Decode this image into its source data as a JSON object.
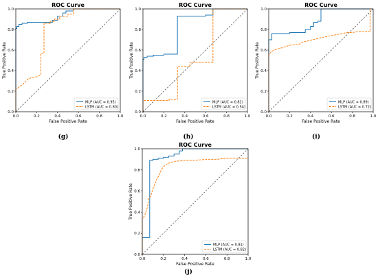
{
  "chart_data": [
    {
      "type": "line",
      "caption": "(g)",
      "title": "ROC Curve",
      "xlabel": "False Positive Rate",
      "ylabel": "True Positive Rate",
      "xlim": [
        0,
        1
      ],
      "ylim": [
        0,
        1
      ],
      "ticks": [
        "0.0",
        "0.2",
        "0.4",
        "0.6",
        "0.8",
        "1.0"
      ],
      "legend_position": "lower-right",
      "diagonal": true,
      "series": [
        {
          "name": "MLP (AUC = 0.95)",
          "color": "#1f77b4",
          "style": "solid",
          "x": [
            0,
            0,
            0.01,
            0.01,
            0.03,
            0.03,
            0.06,
            0.06,
            0.11,
            0.11,
            0.25,
            0.25,
            0.35,
            0.35,
            0.4,
            0.4,
            0.45,
            0.45,
            0.48,
            0.48,
            0.55,
            0.55,
            1.0
          ],
          "y": [
            0,
            0.81,
            0.81,
            0.83,
            0.83,
            0.85,
            0.85,
            0.86,
            0.86,
            0.87,
            0.87,
            0.87,
            0.87,
            0.89,
            0.89,
            0.93,
            0.93,
            0.96,
            0.96,
            0.98,
            0.98,
            1.0,
            1.0
          ]
        },
        {
          "name": "LSTM (AUC = 0.80)",
          "color": "#ff7f0e",
          "style": "dashed",
          "x": [
            0,
            0,
            0.02,
            0.04,
            0.06,
            0.08,
            0.1,
            0.12,
            0.15,
            0.2,
            0.24,
            0.24,
            0.27,
            0.27,
            0.33,
            0.33,
            0.37,
            0.37,
            0.42,
            0.42,
            0.5,
            0.5,
            0.55,
            0.55,
            1.0
          ],
          "y": [
            0,
            0.22,
            0.23,
            0.25,
            0.26,
            0.28,
            0.3,
            0.32,
            0.33,
            0.34,
            0.36,
            0.57,
            0.57,
            0.86,
            0.86,
            0.88,
            0.88,
            0.9,
            0.9,
            0.93,
            0.93,
            0.95,
            0.95,
            1.0,
            1.0
          ]
        }
      ]
    },
    {
      "type": "line",
      "caption": "(h)",
      "title": "ROC Curve",
      "xlabel": "False Positive Rate",
      "ylabel": "True Positive Rate",
      "xlim": [
        0,
        1
      ],
      "ylim": [
        0,
        1
      ],
      "ticks": [
        "0.0",
        "0.2",
        "0.4",
        "0.6",
        "0.8",
        "1.0"
      ],
      "legend_position": "lower-right",
      "diagonal": true,
      "series": [
        {
          "name": "MLP (AUC = 0.82)",
          "color": "#1f77b4",
          "style": "solid",
          "x": [
            0,
            0,
            0.01,
            0.01,
            0.04,
            0.04,
            0.1,
            0.1,
            0.2,
            0.2,
            0.33,
            0.33,
            0.5,
            0.5,
            0.6,
            0.6,
            0.67,
            0.67,
            1.0
          ],
          "y": [
            0,
            0.51,
            0.51,
            0.53,
            0.53,
            0.54,
            0.54,
            0.55,
            0.55,
            0.56,
            0.56,
            0.93,
            0.93,
            0.93,
            0.93,
            0.94,
            0.94,
            1.0,
            1.0
          ]
        },
        {
          "name": "LSTM (AUC = 0.54)",
          "color": "#ff7f0e",
          "style": "dashed",
          "x": [
            0,
            0,
            0.25,
            0.25,
            0.33,
            0.33,
            0.45,
            0.45,
            0.67,
            0.67,
            1.0
          ],
          "y": [
            0,
            0.11,
            0.11,
            0.12,
            0.12,
            0.44,
            0.44,
            0.48,
            0.48,
            1.0,
            1.0
          ]
        }
      ]
    },
    {
      "type": "line",
      "caption": "(i)",
      "title": "ROC Curve",
      "xlabel": "False Positive Rate",
      "ylabel": "True Positive Rate",
      "xlim": [
        0,
        1
      ],
      "ylim": [
        0,
        1
      ],
      "ticks": [
        "0.0",
        "0.2",
        "0.4",
        "0.6",
        "0.8",
        "1.0"
      ],
      "legend_position": "lower-right",
      "diagonal": true,
      "series": [
        {
          "name": "MLP (AUC = 0.89)",
          "color": "#1f77b4",
          "style": "solid",
          "x": [
            0,
            0,
            0.03,
            0.03,
            0.2,
            0.2,
            0.35,
            0.35,
            0.4,
            0.4,
            0.43,
            0.43,
            0.47,
            0.47,
            0.5,
            0.5,
            1.0
          ],
          "y": [
            0,
            0.7,
            0.7,
            0.76,
            0.76,
            0.77,
            0.77,
            0.8,
            0.8,
            0.83,
            0.83,
            0.87,
            0.87,
            0.88,
            0.88,
            1.0,
            1.0
          ]
        },
        {
          "name": "LSTM (AUC = 0.72)",
          "color": "#ff7f0e",
          "style": "dashed",
          "x": [
            0,
            0,
            0.02,
            0.05,
            0.08,
            0.12,
            0.15,
            0.18,
            0.22,
            0.26,
            0.3,
            0.33,
            0.38,
            0.42,
            0.46,
            0.5,
            0.55,
            0.6,
            0.65,
            0.7,
            0.75,
            0.8,
            0.86,
            0.92,
            0.97,
            0.97,
            1.0
          ],
          "y": [
            0,
            0.55,
            0.58,
            0.6,
            0.61,
            0.62,
            0.63,
            0.64,
            0.65,
            0.65,
            0.66,
            0.68,
            0.69,
            0.7,
            0.71,
            0.72,
            0.73,
            0.74,
            0.75,
            0.76,
            0.77,
            0.77,
            0.78,
            0.78,
            0.78,
            1.0,
            1.0
          ]
        }
      ]
    },
    {
      "type": "line",
      "caption": "(j)",
      "title": "ROC Curve",
      "xlabel": "False Positive Rate",
      "ylabel": "True Positive Rate",
      "xlim": [
        0,
        1
      ],
      "ylim": [
        0,
        1
      ],
      "ticks": [
        "0.0",
        "0.2",
        "0.4",
        "0.6",
        "0.8",
        "1.0"
      ],
      "legend_position": "lower-right",
      "diagonal": true,
      "series": [
        {
          "name": "MLP (AUC = 0.91)",
          "color": "#1f77b4",
          "style": "solid",
          "x": [
            0,
            0,
            0.07,
            0.07,
            0.1,
            0.1,
            0.15,
            0.15,
            0.2,
            0.2,
            0.25,
            0.25,
            0.3,
            0.3,
            0.35,
            0.35,
            0.38,
            0.38,
            1.0
          ],
          "y": [
            0,
            0.16,
            0.16,
            0.89,
            0.89,
            0.9,
            0.9,
            0.91,
            0.91,
            0.92,
            0.92,
            0.93,
            0.93,
            0.95,
            0.95,
            0.98,
            0.98,
            1.0,
            1.0
          ]
        },
        {
          "name": "LSTM (AUC = 0.82)",
          "color": "#ff7f0e",
          "style": "dashed",
          "x": [
            0,
            0,
            0.02,
            0.04,
            0.05,
            0.06,
            0.08,
            0.1,
            0.12,
            0.14,
            0.16,
            0.18,
            0.2,
            0.24,
            0.3,
            0.4,
            0.5,
            0.6,
            0.7,
            0.8,
            0.9,
            1.0
          ],
          "y": [
            0,
            0.34,
            0.36,
            0.42,
            0.45,
            0.53,
            0.55,
            0.62,
            0.67,
            0.72,
            0.75,
            0.8,
            0.83,
            0.86,
            0.88,
            0.89,
            0.89,
            0.9,
            0.9,
            0.91,
            0.91,
            0.91
          ]
        }
      ]
    }
  ]
}
